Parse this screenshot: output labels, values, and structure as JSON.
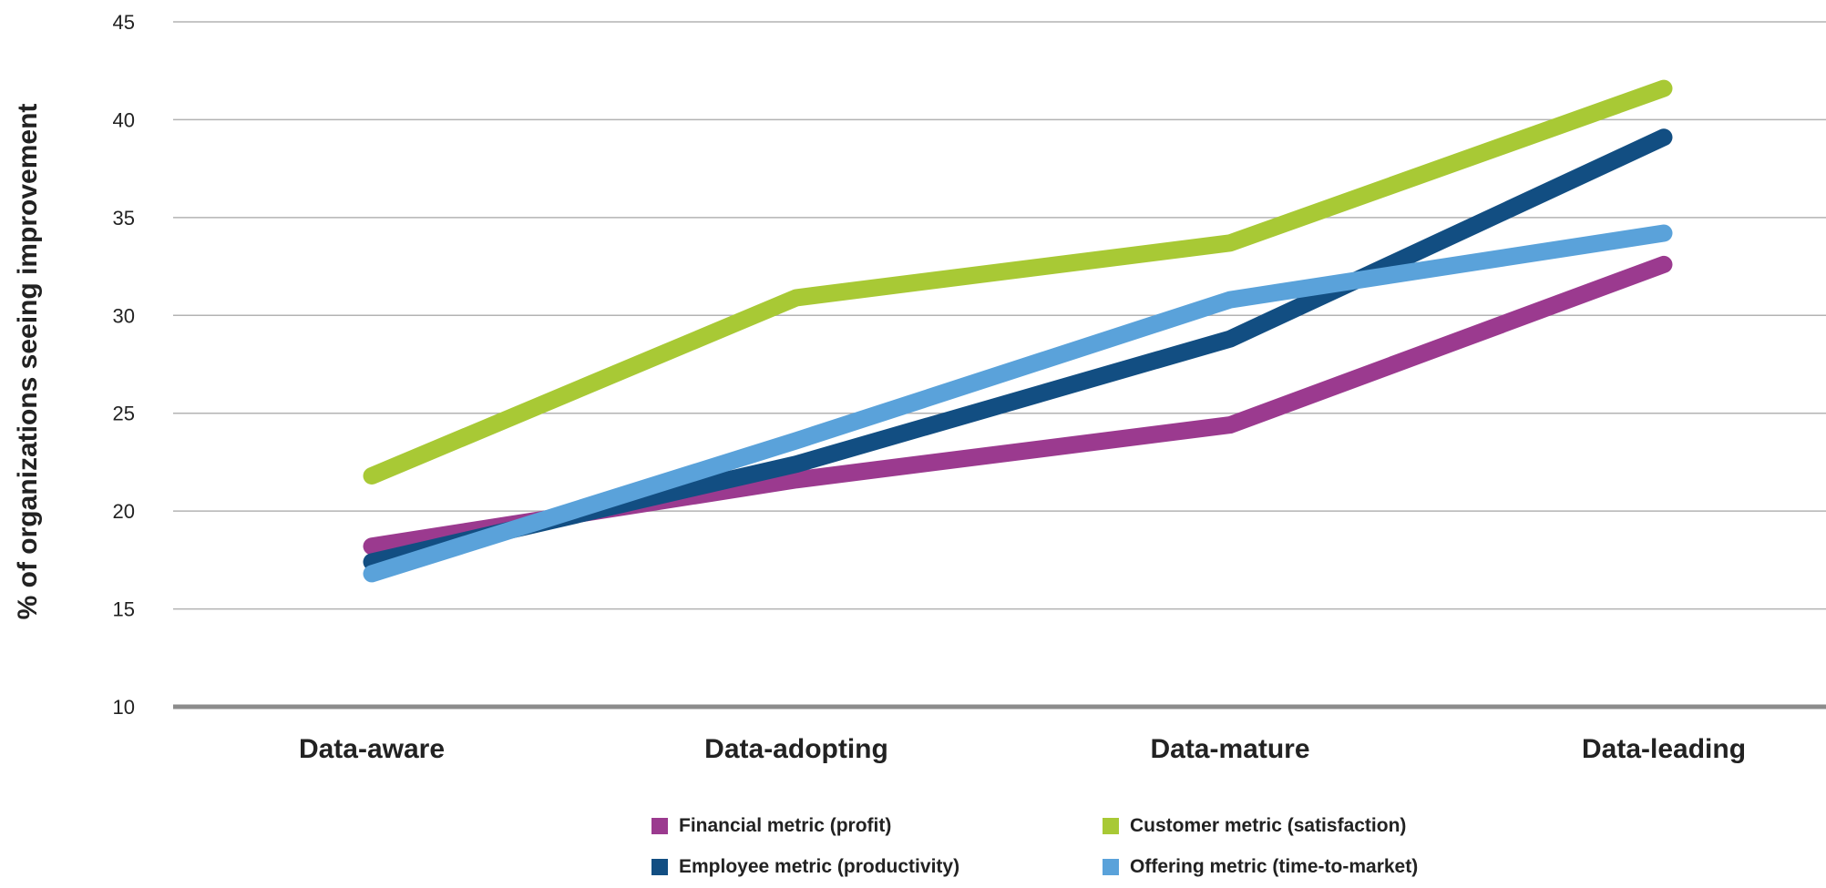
{
  "chart_data": {
    "type": "line",
    "title": "",
    "xlabel": "",
    "ylabel": "% of organizations seeing improvement",
    "ylim": [
      10,
      45
    ],
    "yticks": [
      10,
      15,
      20,
      25,
      30,
      35,
      40,
      45
    ],
    "categories": [
      "Data-aware",
      "Data-adopting",
      "Data-mature",
      "Data-leading"
    ],
    "grid": true,
    "legend_position": "bottom",
    "series": [
      {
        "name": "Financial metric (profit)",
        "color": "#9b3a8f",
        "values": [
          18.2,
          21.6,
          24.4,
          32.6
        ]
      },
      {
        "name": "Customer metric (satisfaction)",
        "color": "#a8c935",
        "values": [
          21.8,
          30.9,
          33.7,
          41.6
        ]
      },
      {
        "name": "Employee metric (productivity)",
        "color": "#124e82",
        "values": [
          17.4,
          22.4,
          28.8,
          39.1
        ]
      },
      {
        "name": "Offering metric (time-to-market)",
        "color": "#5aa2da",
        "values": [
          16.8,
          23.6,
          30.8,
          34.2
        ]
      }
    ]
  }
}
